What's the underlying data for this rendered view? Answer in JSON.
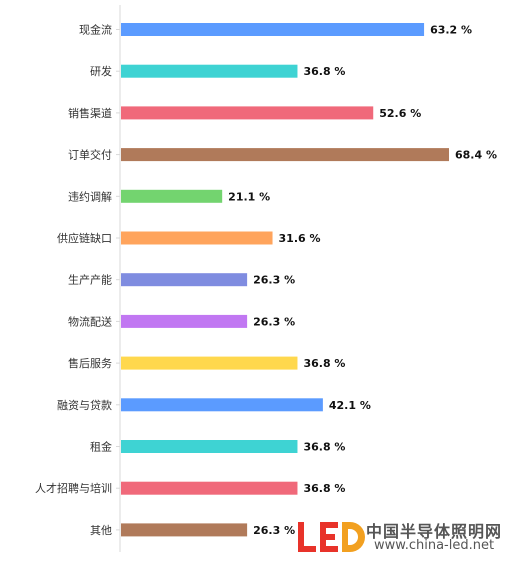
{
  "chart_data": {
    "type": "bar",
    "orientation": "horizontal",
    "categories": [
      "现金流",
      "研发",
      "销售渠道",
      "订单交付",
      "违约调解",
      "供应链缺口",
      "生产产能",
      "物流配送",
      "售后服务",
      "融资与贷款",
      "租金",
      "人才招聘与培训",
      "其他"
    ],
    "values": [
      63.2,
      36.8,
      52.6,
      68.4,
      21.1,
      31.6,
      26.3,
      26.3,
      36.8,
      42.1,
      36.8,
      36.8,
      26.3
    ],
    "value_labels": [
      "63.2 %",
      "36.8 %",
      "52.6 %",
      "68.4 %",
      "21.1 %",
      "31.6 %",
      "26.3 %",
      "26.3 %",
      "36.8 %",
      "42.1 %",
      "36.8 %",
      "36.8 %",
      "26.3 %"
    ],
    "colors": [
      "#5b9bff",
      "#3ed3d3",
      "#f0697a",
      "#b07a5a",
      "#73d46f",
      "#ffa45c",
      "#7f8ce0",
      "#c177f2",
      "#ffd84d",
      "#5b9bff",
      "#3ed3d3",
      "#f0697a",
      "#b07a5a"
    ],
    "xlim": [
      0,
      68.4
    ],
    "grid": false,
    "legend": "none"
  },
  "watermark": {
    "logo_text": "LED",
    "site_name": "中国半导体照明网",
    "url": "www.china-led.net"
  }
}
